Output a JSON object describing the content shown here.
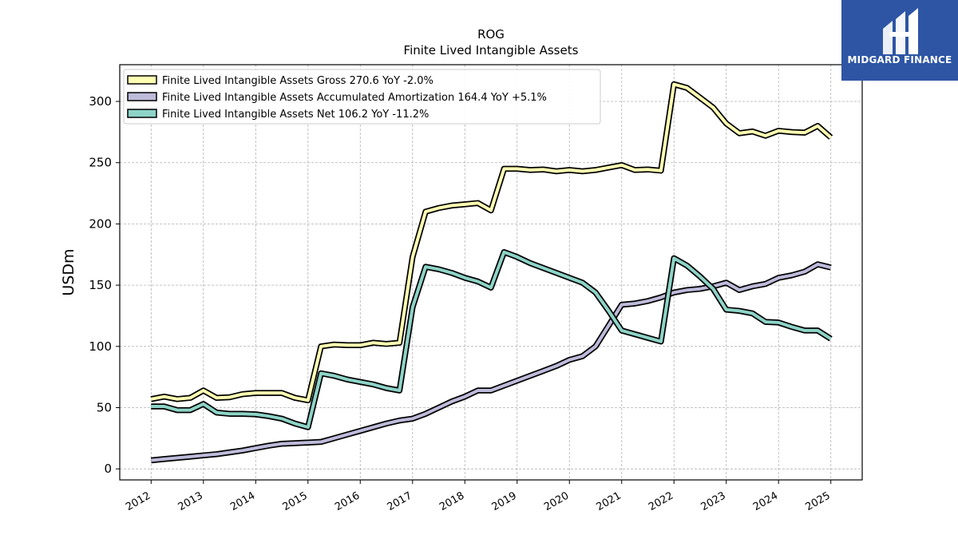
{
  "brand": {
    "name": "MIDGARD FINANCE",
    "bg_color": "#2d55a4"
  },
  "chart_data": {
    "type": "line",
    "title": "ROG",
    "subtitle": "Finite Lived Intangible Assets",
    "ylabel": "USDm",
    "xlabel": "",
    "xlim": [
      2011.4,
      2025.6
    ],
    "ylim": [
      -9,
      330
    ],
    "x_ticks": [
      "2012",
      "2013",
      "2014",
      "2015",
      "2016",
      "2017",
      "2018",
      "2019",
      "2020",
      "2021",
      "2022",
      "2023",
      "2024",
      "2025"
    ],
    "y_ticks": [
      0,
      50,
      100,
      150,
      200,
      250,
      300
    ],
    "grid": true,
    "legend_position": "top-left",
    "series": [
      {
        "name": "Finite Lived Intangible Assets Gross",
        "legend": "Finite Lived Intangible Assets Gross  270.6 YoY -2.0%",
        "color": "#ffffb3",
        "points": [
          [
            2012.0,
            57
          ],
          [
            2012.25,
            59
          ],
          [
            2012.5,
            57
          ],
          [
            2012.75,
            58
          ],
          [
            2013.0,
            64
          ],
          [
            2013.25,
            58
          ],
          [
            2013.5,
            58.5
          ],
          [
            2013.75,
            61
          ],
          [
            2014.0,
            62
          ],
          [
            2014.25,
            62
          ],
          [
            2014.5,
            62
          ],
          [
            2014.75,
            58
          ],
          [
            2015.0,
            56
          ],
          [
            2015.25,
            100
          ],
          [
            2015.5,
            101.5
          ],
          [
            2015.75,
            101
          ],
          [
            2016.0,
            101
          ],
          [
            2016.25,
            103
          ],
          [
            2016.5,
            102
          ],
          [
            2016.75,
            103
          ],
          [
            2017.0,
            173
          ],
          [
            2017.25,
            210
          ],
          [
            2017.5,
            213
          ],
          [
            2017.75,
            215
          ],
          [
            2018.0,
            216
          ],
          [
            2018.25,
            217
          ],
          [
            2018.5,
            211
          ],
          [
            2018.75,
            245
          ],
          [
            2019.0,
            245
          ],
          [
            2019.25,
            244
          ],
          [
            2019.5,
            244.5
          ],
          [
            2019.75,
            243
          ],
          [
            2020.0,
            244
          ],
          [
            2020.25,
            243
          ],
          [
            2020.5,
            244
          ],
          [
            2020.75,
            246
          ],
          [
            2021.0,
            248
          ],
          [
            2021.25,
            244
          ],
          [
            2021.5,
            244.5
          ],
          [
            2021.75,
            243.5
          ],
          [
            2022.0,
            314
          ],
          [
            2022.25,
            311
          ],
          [
            2022.5,
            303
          ],
          [
            2022.75,
            295
          ],
          [
            2023.0,
            282
          ],
          [
            2023.25,
            274
          ],
          [
            2023.5,
            275.5
          ],
          [
            2023.75,
            272
          ],
          [
            2024.0,
            276
          ],
          [
            2024.25,
            275
          ],
          [
            2024.5,
            274.5
          ],
          [
            2024.75,
            280
          ],
          [
            2025.0,
            270.6
          ]
        ]
      },
      {
        "name": "Finite Lived Intangible Assets Accumulated Amortization",
        "legend": "Finite Lived Intangible Assets Accumulated Amortization  164.4 YoY +5.1%",
        "color": "#bebada",
        "points": [
          [
            2012.0,
            7
          ],
          [
            2012.25,
            8
          ],
          [
            2012.5,
            9
          ],
          [
            2012.75,
            10
          ],
          [
            2013.0,
            11
          ],
          [
            2013.25,
            12
          ],
          [
            2013.5,
            13.5
          ],
          [
            2013.75,
            15
          ],
          [
            2014.0,
            17
          ],
          [
            2014.25,
            19
          ],
          [
            2014.5,
            20.5
          ],
          [
            2014.75,
            21
          ],
          [
            2015.0,
            21.5
          ],
          [
            2015.25,
            22
          ],
          [
            2015.5,
            25
          ],
          [
            2015.75,
            28
          ],
          [
            2016.0,
            31
          ],
          [
            2016.25,
            34
          ],
          [
            2016.5,
            37
          ],
          [
            2016.75,
            39.5
          ],
          [
            2017.0,
            41
          ],
          [
            2017.25,
            45
          ],
          [
            2017.5,
            50
          ],
          [
            2017.75,
            55
          ],
          [
            2018.0,
            59
          ],
          [
            2018.25,
            64
          ],
          [
            2018.5,
            64
          ],
          [
            2018.75,
            68
          ],
          [
            2019.0,
            72
          ],
          [
            2019.25,
            76
          ],
          [
            2019.5,
            80
          ],
          [
            2019.75,
            84
          ],
          [
            2020.0,
            89
          ],
          [
            2020.25,
            92
          ],
          [
            2020.5,
            100
          ],
          [
            2020.75,
            117
          ],
          [
            2021.0,
            134
          ],
          [
            2021.25,
            135
          ],
          [
            2021.5,
            137
          ],
          [
            2021.75,
            140
          ],
          [
            2022.0,
            144
          ],
          [
            2022.25,
            146
          ],
          [
            2022.5,
            147
          ],
          [
            2022.75,
            149
          ],
          [
            2023.0,
            152
          ],
          [
            2023.25,
            146
          ],
          [
            2023.5,
            149
          ],
          [
            2023.75,
            151
          ],
          [
            2024.0,
            156
          ],
          [
            2024.25,
            158
          ],
          [
            2024.5,
            161
          ],
          [
            2024.75,
            167
          ],
          [
            2025.0,
            164.4
          ]
        ]
      },
      {
        "name": "Finite Lived Intangible Assets Net",
        "legend": "Finite Lived Intangible Assets Net  106.2 YoY -11.2%",
        "color": "#8dd3c7",
        "points": [
          [
            2012.0,
            51
          ],
          [
            2012.25,
            51
          ],
          [
            2012.5,
            48
          ],
          [
            2012.75,
            48
          ],
          [
            2013.0,
            53
          ],
          [
            2013.25,
            46
          ],
          [
            2013.5,
            45
          ],
          [
            2013.75,
            45
          ],
          [
            2014.0,
            44.5
          ],
          [
            2014.25,
            43
          ],
          [
            2014.5,
            41
          ],
          [
            2014.75,
            37
          ],
          [
            2015.0,
            34
          ],
          [
            2015.25,
            78
          ],
          [
            2015.5,
            76
          ],
          [
            2015.75,
            73
          ],
          [
            2016.0,
            71
          ],
          [
            2016.25,
            69
          ],
          [
            2016.5,
            66
          ],
          [
            2016.75,
            64
          ],
          [
            2017.0,
            132
          ],
          [
            2017.25,
            165
          ],
          [
            2017.5,
            163
          ],
          [
            2017.75,
            160
          ],
          [
            2018.0,
            156
          ],
          [
            2018.25,
            153
          ],
          [
            2018.5,
            148
          ],
          [
            2018.75,
            177
          ],
          [
            2019.0,
            173
          ],
          [
            2019.25,
            168
          ],
          [
            2019.5,
            164
          ],
          [
            2019.75,
            160
          ],
          [
            2020.0,
            156
          ],
          [
            2020.25,
            152
          ],
          [
            2020.5,
            144
          ],
          [
            2020.75,
            129
          ],
          [
            2021.0,
            113
          ],
          [
            2021.25,
            110
          ],
          [
            2021.5,
            107
          ],
          [
            2021.75,
            104
          ],
          [
            2022.0,
            172
          ],
          [
            2022.25,
            166
          ],
          [
            2022.5,
            157
          ],
          [
            2022.75,
            147
          ],
          [
            2023.0,
            130
          ],
          [
            2023.25,
            129
          ],
          [
            2023.5,
            127
          ],
          [
            2023.75,
            120
          ],
          [
            2024.0,
            119.5
          ],
          [
            2024.25,
            116
          ],
          [
            2024.5,
            113
          ],
          [
            2024.75,
            113
          ],
          [
            2025.0,
            106.2
          ]
        ]
      }
    ]
  }
}
